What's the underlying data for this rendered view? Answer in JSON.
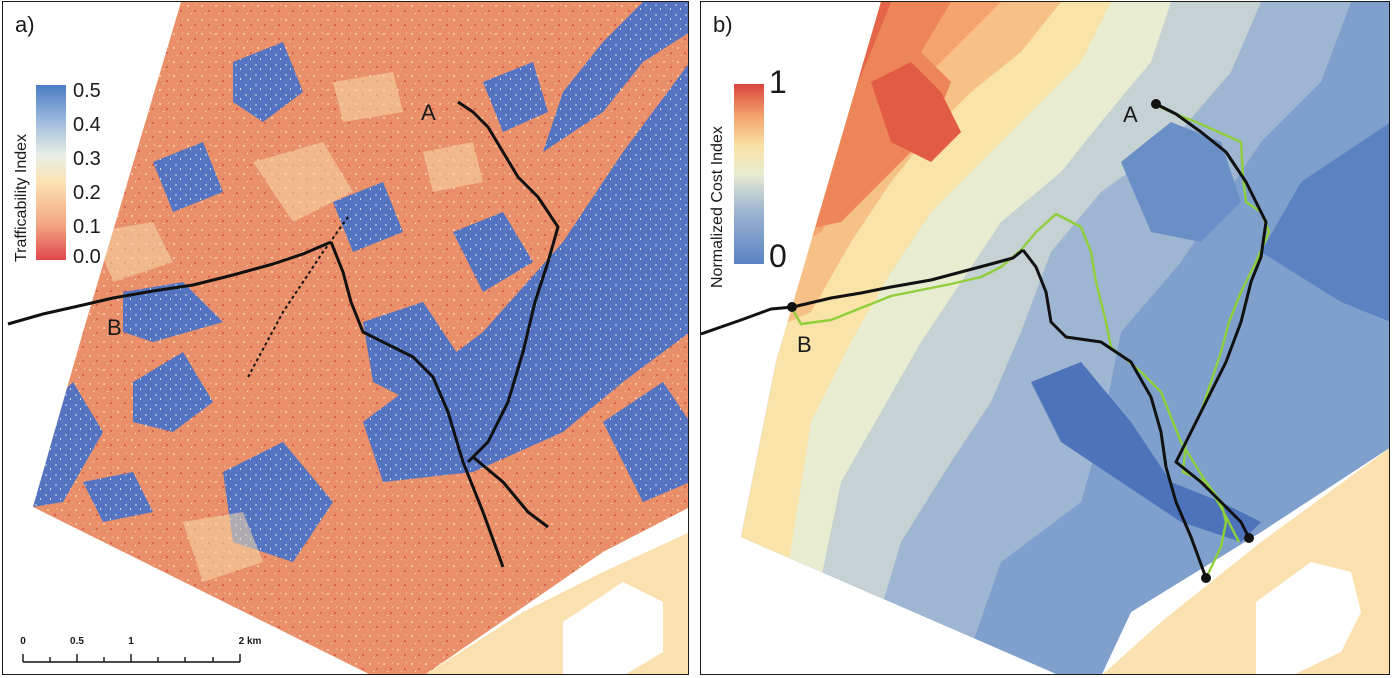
{
  "panel_a": {
    "label": "a)",
    "colorbar": {
      "title": "Trafficability Index",
      "ticks": [
        "0.5",
        "0.4",
        "0.3",
        "0.2",
        "0.1",
        "0.0"
      ],
      "colors_low_to_high": [
        "#e0474c",
        "#f4a582",
        "#fbe3b5",
        "#e8efe6",
        "#9bb8dc",
        "#4a7cc4"
      ]
    },
    "points": {
      "A": "A",
      "B": "B"
    },
    "scale_bar": {
      "ticks": [
        "0",
        "0.5",
        "1",
        "2 km"
      ]
    }
  },
  "panel_b": {
    "label": "b)",
    "colorbar": {
      "title": "Normalized Cost Index",
      "ticks": [
        "1",
        "0"
      ],
      "colors_low_to_high": [
        "#5b83c2",
        "#9fb6d2",
        "#e8ecd0",
        "#f9e3a8",
        "#f4a46c",
        "#d9453e"
      ]
    },
    "points": {
      "A": "A",
      "B": "B"
    },
    "route_colors": {
      "black_route": "#111111",
      "green_route": "#8fcf3c"
    }
  },
  "colors": {
    "orange_terrain": "#e9906a",
    "blue_terrain": "#4f74c8",
    "water_sand": "#fbe1b0",
    "route_line": "#111111"
  }
}
